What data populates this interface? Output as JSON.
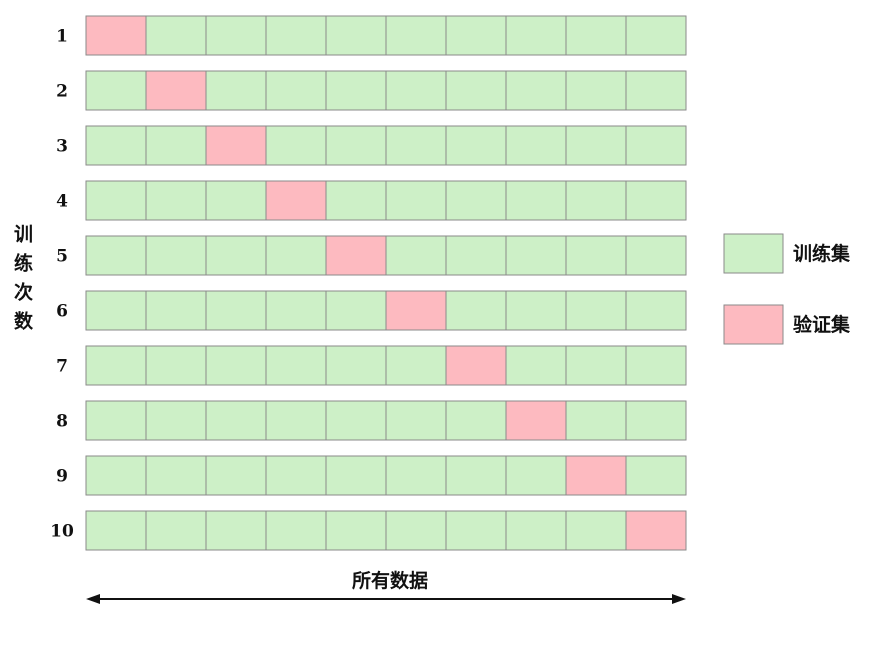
{
  "y_axis_label": "训练次数",
  "x_axis_label": "所有数据",
  "rows": [
    {
      "label": "1",
      "validation_index": 0
    },
    {
      "label": "2",
      "validation_index": 1
    },
    {
      "label": "3",
      "validation_index": 2
    },
    {
      "label": "4",
      "validation_index": 3
    },
    {
      "label": "5",
      "validation_index": 4
    },
    {
      "label": "6",
      "validation_index": 5
    },
    {
      "label": "7",
      "validation_index": 6
    },
    {
      "label": "8",
      "validation_index": 7
    },
    {
      "label": "9",
      "validation_index": 8
    },
    {
      "label": "10",
      "validation_index": 9
    }
  ],
  "blocks_per_row": 10,
  "legend": [
    {
      "label": "训练集",
      "color": "#cdf0c7"
    },
    {
      "label": "验证集",
      "color": "#fdbac0"
    }
  ],
  "colors": {
    "train": "#cdf0c7",
    "validation": "#fdbac0",
    "border": "#8a8a8a"
  }
}
